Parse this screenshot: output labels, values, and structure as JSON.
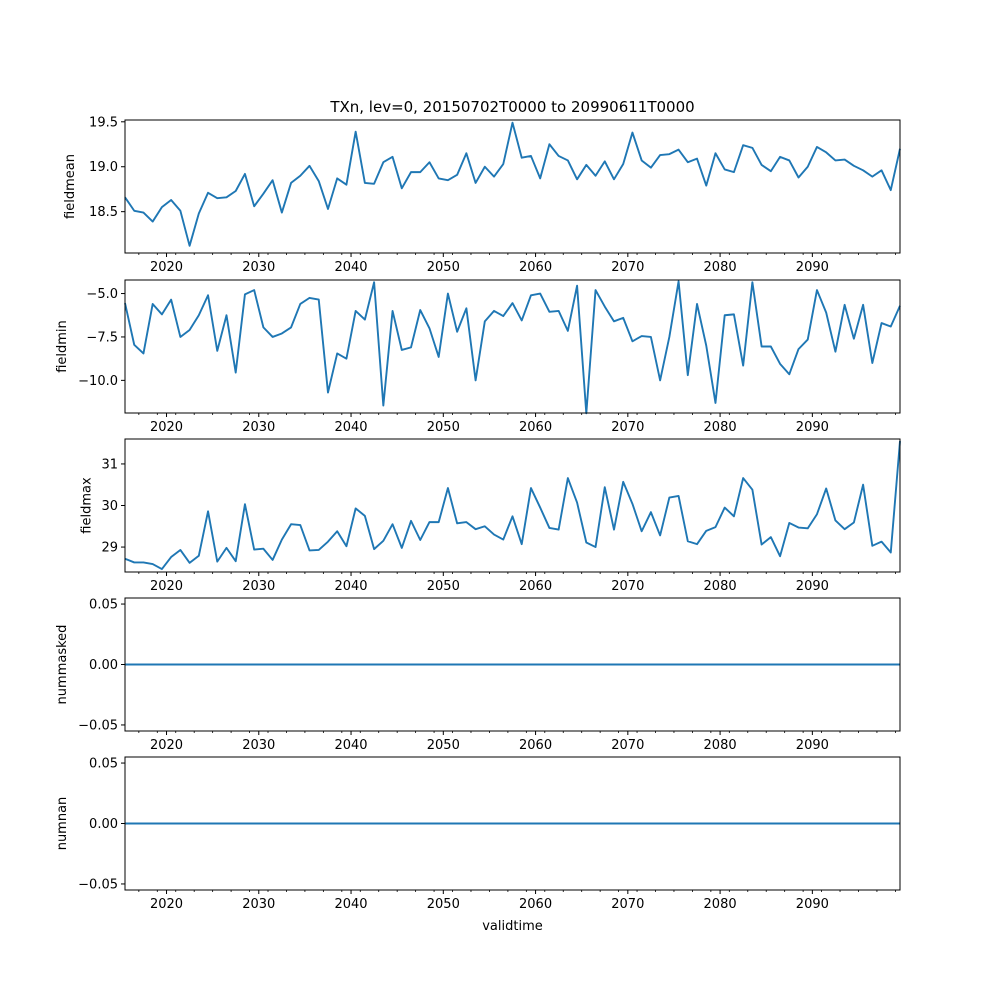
{
  "chart_data": {
    "type": "line",
    "title": "TXn, lev=0, 20150702T0000 to 20990611T0000",
    "xlabel": "validtime",
    "series_color": "#1f77b4",
    "x": [
      2015.5,
      2016.5,
      2017.5,
      2018.5,
      2019.5,
      2020.5,
      2021.5,
      2022.5,
      2023.5,
      2024.5,
      2025.5,
      2026.5,
      2027.5,
      2028.5,
      2029.5,
      2030.5,
      2031.5,
      2032.5,
      2033.5,
      2034.5,
      2035.5,
      2036.5,
      2037.5,
      2038.5,
      2039.5,
      2040.5,
      2041.5,
      2042.5,
      2043.5,
      2044.5,
      2045.5,
      2046.5,
      2047.5,
      2048.5,
      2049.5,
      2050.5,
      2051.5,
      2052.5,
      2053.5,
      2054.5,
      2055.5,
      2056.5,
      2057.5,
      2058.5,
      2059.5,
      2060.5,
      2061.5,
      2062.5,
      2063.5,
      2064.5,
      2065.5,
      2066.5,
      2067.5,
      2068.5,
      2069.5,
      2070.5,
      2071.5,
      2072.5,
      2073.5,
      2074.5,
      2075.5,
      2076.5,
      2077.5,
      2078.5,
      2079.5,
      2080.5,
      2081.5,
      2082.5,
      2083.5,
      2084.5,
      2085.5,
      2086.5,
      2087.5,
      2088.5,
      2089.5,
      2090.5,
      2091.5,
      2092.5,
      2093.5,
      2094.5,
      2095.5,
      2096.5,
      2097.5,
      2098.5,
      2099.5
    ],
    "xlim": [
      2015.5,
      2099.5
    ],
    "xticks": [
      2020,
      2030,
      2040,
      2050,
      2060,
      2070,
      2080,
      2090
    ],
    "xtick_labels": [
      "2020",
      "2030",
      "2040",
      "2050",
      "2060",
      "2070",
      "2080",
      "2090"
    ],
    "panels": [
      {
        "ylabel": "fieldmean",
        "ylim": [
          18.04,
          19.52
        ],
        "yticks": [
          18.5,
          19.0,
          19.5
        ],
        "ytick_labels": [
          "18.5",
          "19.0",
          "19.5"
        ],
        "values": [
          18.66,
          18.51,
          18.49,
          18.39,
          18.55,
          18.63,
          18.51,
          18.12,
          18.48,
          18.71,
          18.65,
          18.66,
          18.73,
          18.92,
          18.56,
          18.7,
          18.85,
          18.49,
          18.82,
          18.9,
          19.01,
          18.84,
          18.53,
          18.87,
          18.8,
          19.39,
          18.82,
          18.81,
          19.05,
          19.11,
          18.76,
          18.94,
          18.94,
          19.05,
          18.87,
          18.85,
          18.91,
          19.15,
          18.82,
          19.0,
          18.89,
          19.03,
          19.49,
          19.1,
          19.12,
          18.87,
          19.25,
          19.12,
          19.07,
          18.86,
          19.02,
          18.9,
          19.06,
          18.86,
          19.03,
          19.38,
          19.07,
          18.99,
          19.13,
          19.14,
          19.19,
          19.05,
          19.09,
          18.79,
          19.15,
          18.97,
          18.94,
          19.24,
          19.21,
          19.02,
          18.95,
          19.11,
          19.07,
          18.88,
          19.0,
          19.22,
          19.16,
          19.07,
          19.08,
          19.01,
          18.96,
          18.89,
          18.96,
          18.74,
          19.2
        ]
      },
      {
        "ylabel": "fieldmin",
        "ylim": [
          -11.88,
          -4.22
        ],
        "yticks": [
          -10.0,
          -7.5,
          -5.0
        ],
        "ytick_labels": [
          "−10.0",
          "−7.5",
          "−5.0"
        ],
        "values": [
          -5.55,
          -7.95,
          -8.45,
          -5.6,
          -6.2,
          -5.35,
          -7.5,
          -7.1,
          -6.25,
          -5.1,
          -8.3,
          -6.25,
          -9.55,
          -5.05,
          -4.8,
          -6.95,
          -7.5,
          -7.3,
          -6.95,
          -5.6,
          -5.25,
          -5.35,
          -10.7,
          -8.45,
          -8.75,
          -6.0,
          -6.5,
          -4.35,
          -11.45,
          -6.0,
          -8.25,
          -8.1,
          -5.95,
          -7.0,
          -8.65,
          -5.0,
          -7.2,
          -5.85,
          -10.0,
          -6.6,
          -6.0,
          -6.3,
          -5.55,
          -6.55,
          -5.1,
          -5.0,
          -6.05,
          -6.0,
          -7.15,
          -4.55,
          -11.9,
          -4.8,
          -5.75,
          -6.6,
          -6.4,
          -7.75,
          -7.45,
          -7.5,
          -10.0,
          -7.5,
          -4.3,
          -9.7,
          -5.6,
          -8.0,
          -11.3,
          -6.25,
          -6.2,
          -9.15,
          -4.35,
          -8.05,
          -8.05,
          -9.05,
          -9.65,
          -8.2,
          -7.65,
          -4.8,
          -6.1,
          -8.35,
          -5.65,
          -7.6,
          -5.65,
          -9.0,
          -6.7,
          -6.9,
          -5.7
        ]
      },
      {
        "ylabel": "fieldmax",
        "ylim": [
          28.4,
          31.6
        ],
        "yticks": [
          29,
          30,
          31
        ],
        "ytick_labels": [
          "29",
          "30",
          "31"
        ],
        "values": [
          28.72,
          28.63,
          28.63,
          28.59,
          28.47,
          28.76,
          28.93,
          28.62,
          28.79,
          29.86,
          28.65,
          28.98,
          28.66,
          30.03,
          28.94,
          28.96,
          28.69,
          29.18,
          29.55,
          29.53,
          28.92,
          28.93,
          29.13,
          29.38,
          29.02,
          29.93,
          29.75,
          28.95,
          29.15,
          29.55,
          28.98,
          29.63,
          29.17,
          29.6,
          29.6,
          30.42,
          29.57,
          29.6,
          29.43,
          29.5,
          29.3,
          29.18,
          29.74,
          29.07,
          30.42,
          29.95,
          29.46,
          29.42,
          30.66,
          30.07,
          29.11,
          29.0,
          30.44,
          29.42,
          30.57,
          30.04,
          29.38,
          29.84,
          29.28,
          30.19,
          30.23,
          29.14,
          29.07,
          29.39,
          29.48,
          29.95,
          29.74,
          30.66,
          30.38,
          29.06,
          29.24,
          28.78,
          29.58,
          29.47,
          29.45,
          29.79,
          30.41,
          29.64,
          29.43,
          29.59,
          30.5,
          29.03,
          29.13,
          28.87,
          31.55
        ]
      },
      {
        "ylabel": "nummasked",
        "ylim": [
          -0.055,
          0.055
        ],
        "yticks": [
          -0.05,
          0.0,
          0.05
        ],
        "ytick_labels": [
          "−0.05",
          "0.00",
          "0.05"
        ],
        "constant": 0
      },
      {
        "ylabel": "numnan",
        "ylim": [
          -0.055,
          0.055
        ],
        "yticks": [
          -0.05,
          0.0,
          0.05
        ],
        "ytick_labels": [
          "−0.05",
          "0.00",
          "0.05"
        ],
        "constant": 0
      }
    ]
  }
}
